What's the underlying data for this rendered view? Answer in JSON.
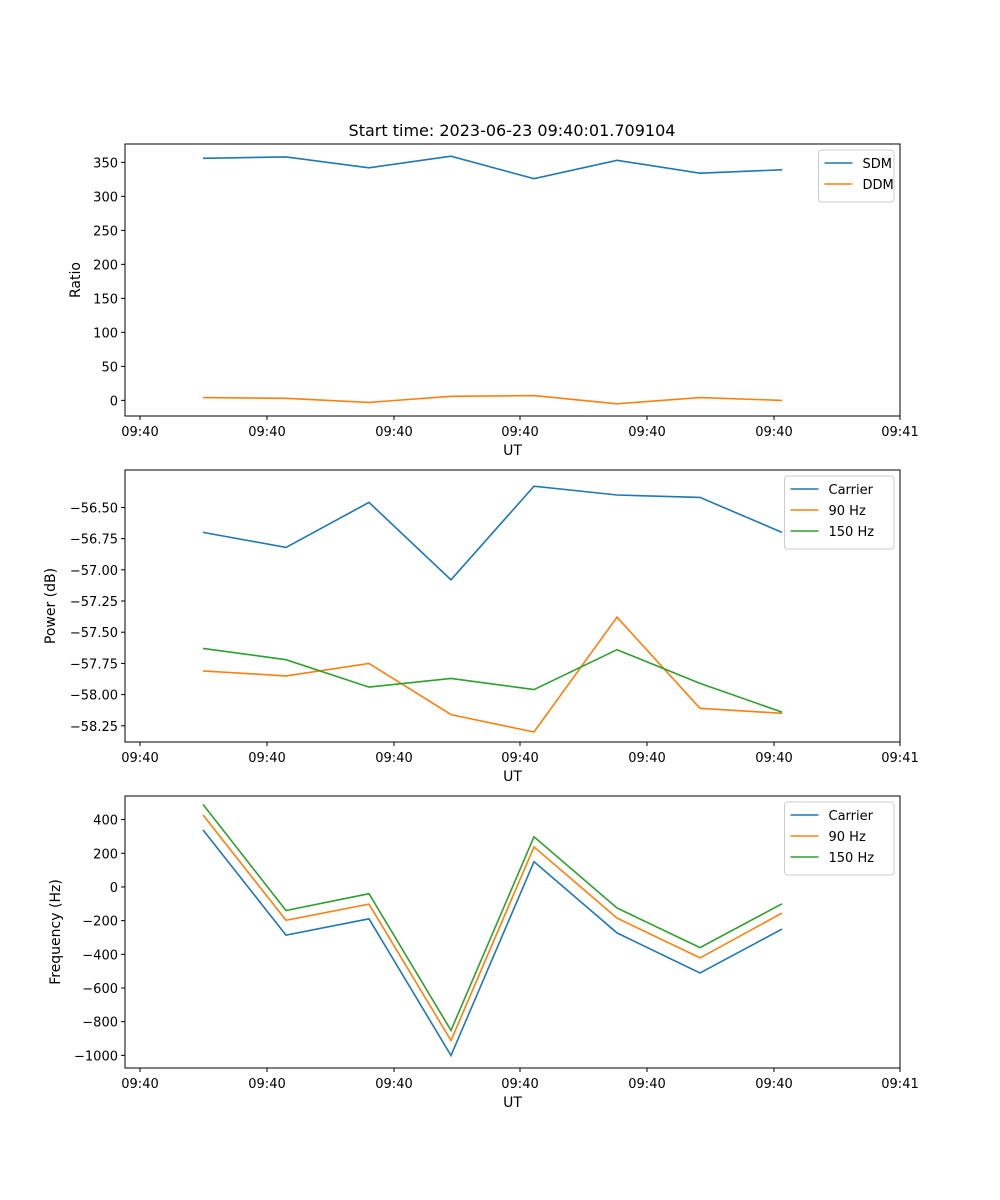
{
  "figure": {
    "title": "Start time: 2023-06-23 09:40:01.709104"
  },
  "chart_data": [
    {
      "type": "line",
      "title": "Start time: 2023-06-23 09:40:01.709104",
      "xlabel": "UT",
      "ylabel": "Ratio",
      "xtick_labels": [
        "09:40",
        "09:40",
        "09:40",
        "09:40",
        "09:40",
        "09:40",
        "09:40"
      ],
      "xtick_last_label": "09:41",
      "ytick_values": [
        0,
        50,
        100,
        150,
        200,
        250,
        300,
        350
      ],
      "ytick_labels": [
        "0",
        "50",
        "100",
        "150",
        "200",
        "250",
        "300",
        "350"
      ],
      "ylim": [
        -23,
        377
      ],
      "legend_position": "upper right",
      "grid": false,
      "series": [
        {
          "name": "SDM",
          "color": "#1f77b4",
          "values": [
            356,
            358,
            342,
            359,
            326,
            353,
            334,
            339
          ]
        },
        {
          "name": "DDM",
          "color": "#ff7f0e",
          "values": [
            4,
            3,
            -3,
            6,
            7,
            -5,
            4,
            0
          ]
        }
      ]
    },
    {
      "type": "line",
      "title": "",
      "xlabel": "UT",
      "ylabel": "Power (dB)",
      "xtick_labels": [
        "09:40",
        "09:40",
        "09:40",
        "09:40",
        "09:40",
        "09:40",
        "09:40"
      ],
      "xtick_last_label": "09:41",
      "ytick_values": [
        -56.5,
        -56.75,
        -57.0,
        -57.25,
        -57.5,
        -57.75,
        -58.0,
        -58.25
      ],
      "ytick_labels": [
        "−56.50",
        "−56.75",
        "−57.00",
        "−57.25",
        "−57.50",
        "−57.75",
        "−58.00",
        "−58.25"
      ],
      "ylim": [
        -58.38,
        -56.2
      ],
      "legend_position": "upper right",
      "grid": false,
      "series": [
        {
          "name": "Carrier",
          "color": "#1f77b4",
          "values": [
            -56.7,
            -56.82,
            -56.46,
            -57.08,
            -56.33,
            -56.4,
            -56.42,
            -56.7
          ]
        },
        {
          "name": "90 Hz",
          "color": "#ff7f0e",
          "values": [
            -57.81,
            -57.85,
            -57.75,
            -58.16,
            -58.3,
            -57.38,
            -58.11,
            -58.15
          ]
        },
        {
          "name": "150 Hz",
          "color": "#2ca02c",
          "values": [
            -57.63,
            -57.72,
            -57.94,
            -57.87,
            -57.96,
            -57.64,
            -57.91,
            -58.14
          ]
        }
      ]
    },
    {
      "type": "line",
      "title": "",
      "xlabel": "UT",
      "ylabel": "Frequency (Hz)",
      "xtick_labels": [
        "09:40",
        "09:40",
        "09:40",
        "09:40",
        "09:40",
        "09:40",
        "09:40"
      ],
      "xtick_last_label": "09:41",
      "ytick_values": [
        400,
        200,
        0,
        -200,
        -400,
        -600,
        -800,
        -1000
      ],
      "ytick_labels": [
        "400",
        "200",
        "0",
        "−200",
        "−400",
        "−600",
        "−800",
        "−1000"
      ],
      "ylim": [
        -1075,
        540
      ],
      "legend_position": "upper right",
      "grid": false,
      "series": [
        {
          "name": "Carrier",
          "color": "#1f77b4",
          "values": [
            339,
            -286,
            -189,
            -1001,
            150,
            -273,
            -511,
            -250
          ]
        },
        {
          "name": "90 Hz",
          "color": "#ff7f0e",
          "values": [
            428,
            -198,
            -102,
            -912,
            238,
            -185,
            -421,
            -155
          ]
        },
        {
          "name": "150 Hz",
          "color": "#2ca02c",
          "values": [
            490,
            -140,
            -40,
            -852,
            298,
            -125,
            -360,
            -100
          ]
        }
      ]
    }
  ]
}
